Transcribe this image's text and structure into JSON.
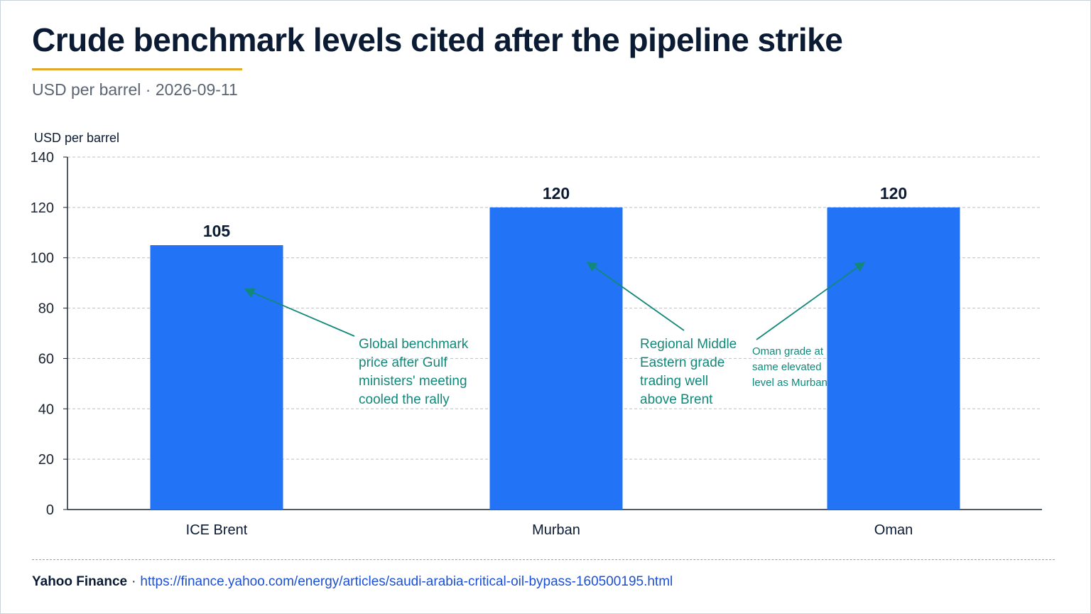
{
  "header": {
    "title": "Crude benchmark levels cited after the pipeline strike",
    "subtitle": "USD per barrel · 2026-09-11"
  },
  "footer": {
    "source": "Yahoo Finance",
    "separator": "·",
    "url": "https://finance.yahoo.com/energy/articles/saudi-arabia-critical-oil-bypass-160500195.html"
  },
  "colors": {
    "bar": "#2273f5",
    "annotation": "#12887a",
    "grid": "#b9c0c8",
    "axis": "#1b2330"
  },
  "chart_data": {
    "type": "bar",
    "title": "Crude benchmark levels cited after the pipeline strike",
    "ylabel": "USD per barrel",
    "xlabel": "",
    "categories": [
      "ICE Brent",
      "Murban",
      "Oman"
    ],
    "values": [
      105,
      120,
      120
    ],
    "data_labels": [
      "105",
      "120",
      "120"
    ],
    "ylim": [
      0,
      140
    ],
    "yticks": [
      0,
      20,
      40,
      60,
      80,
      100,
      120,
      140
    ],
    "grid": true,
    "legend": "none",
    "annotations": [
      {
        "category": "ICE Brent",
        "value": 88,
        "lines": [
          "Global benchmark",
          "price after Gulf",
          "ministers' meeting",
          "cooled the rally"
        ]
      },
      {
        "category": "Murban",
        "value": 99,
        "lines": [
          "Regional Middle",
          "Eastern grade",
          "trading well",
          "above Brent"
        ]
      },
      {
        "category": "Oman",
        "value": 99,
        "lines": [
          "Oman grade at",
          "same elevated",
          "level as Murban"
        ]
      }
    ]
  }
}
